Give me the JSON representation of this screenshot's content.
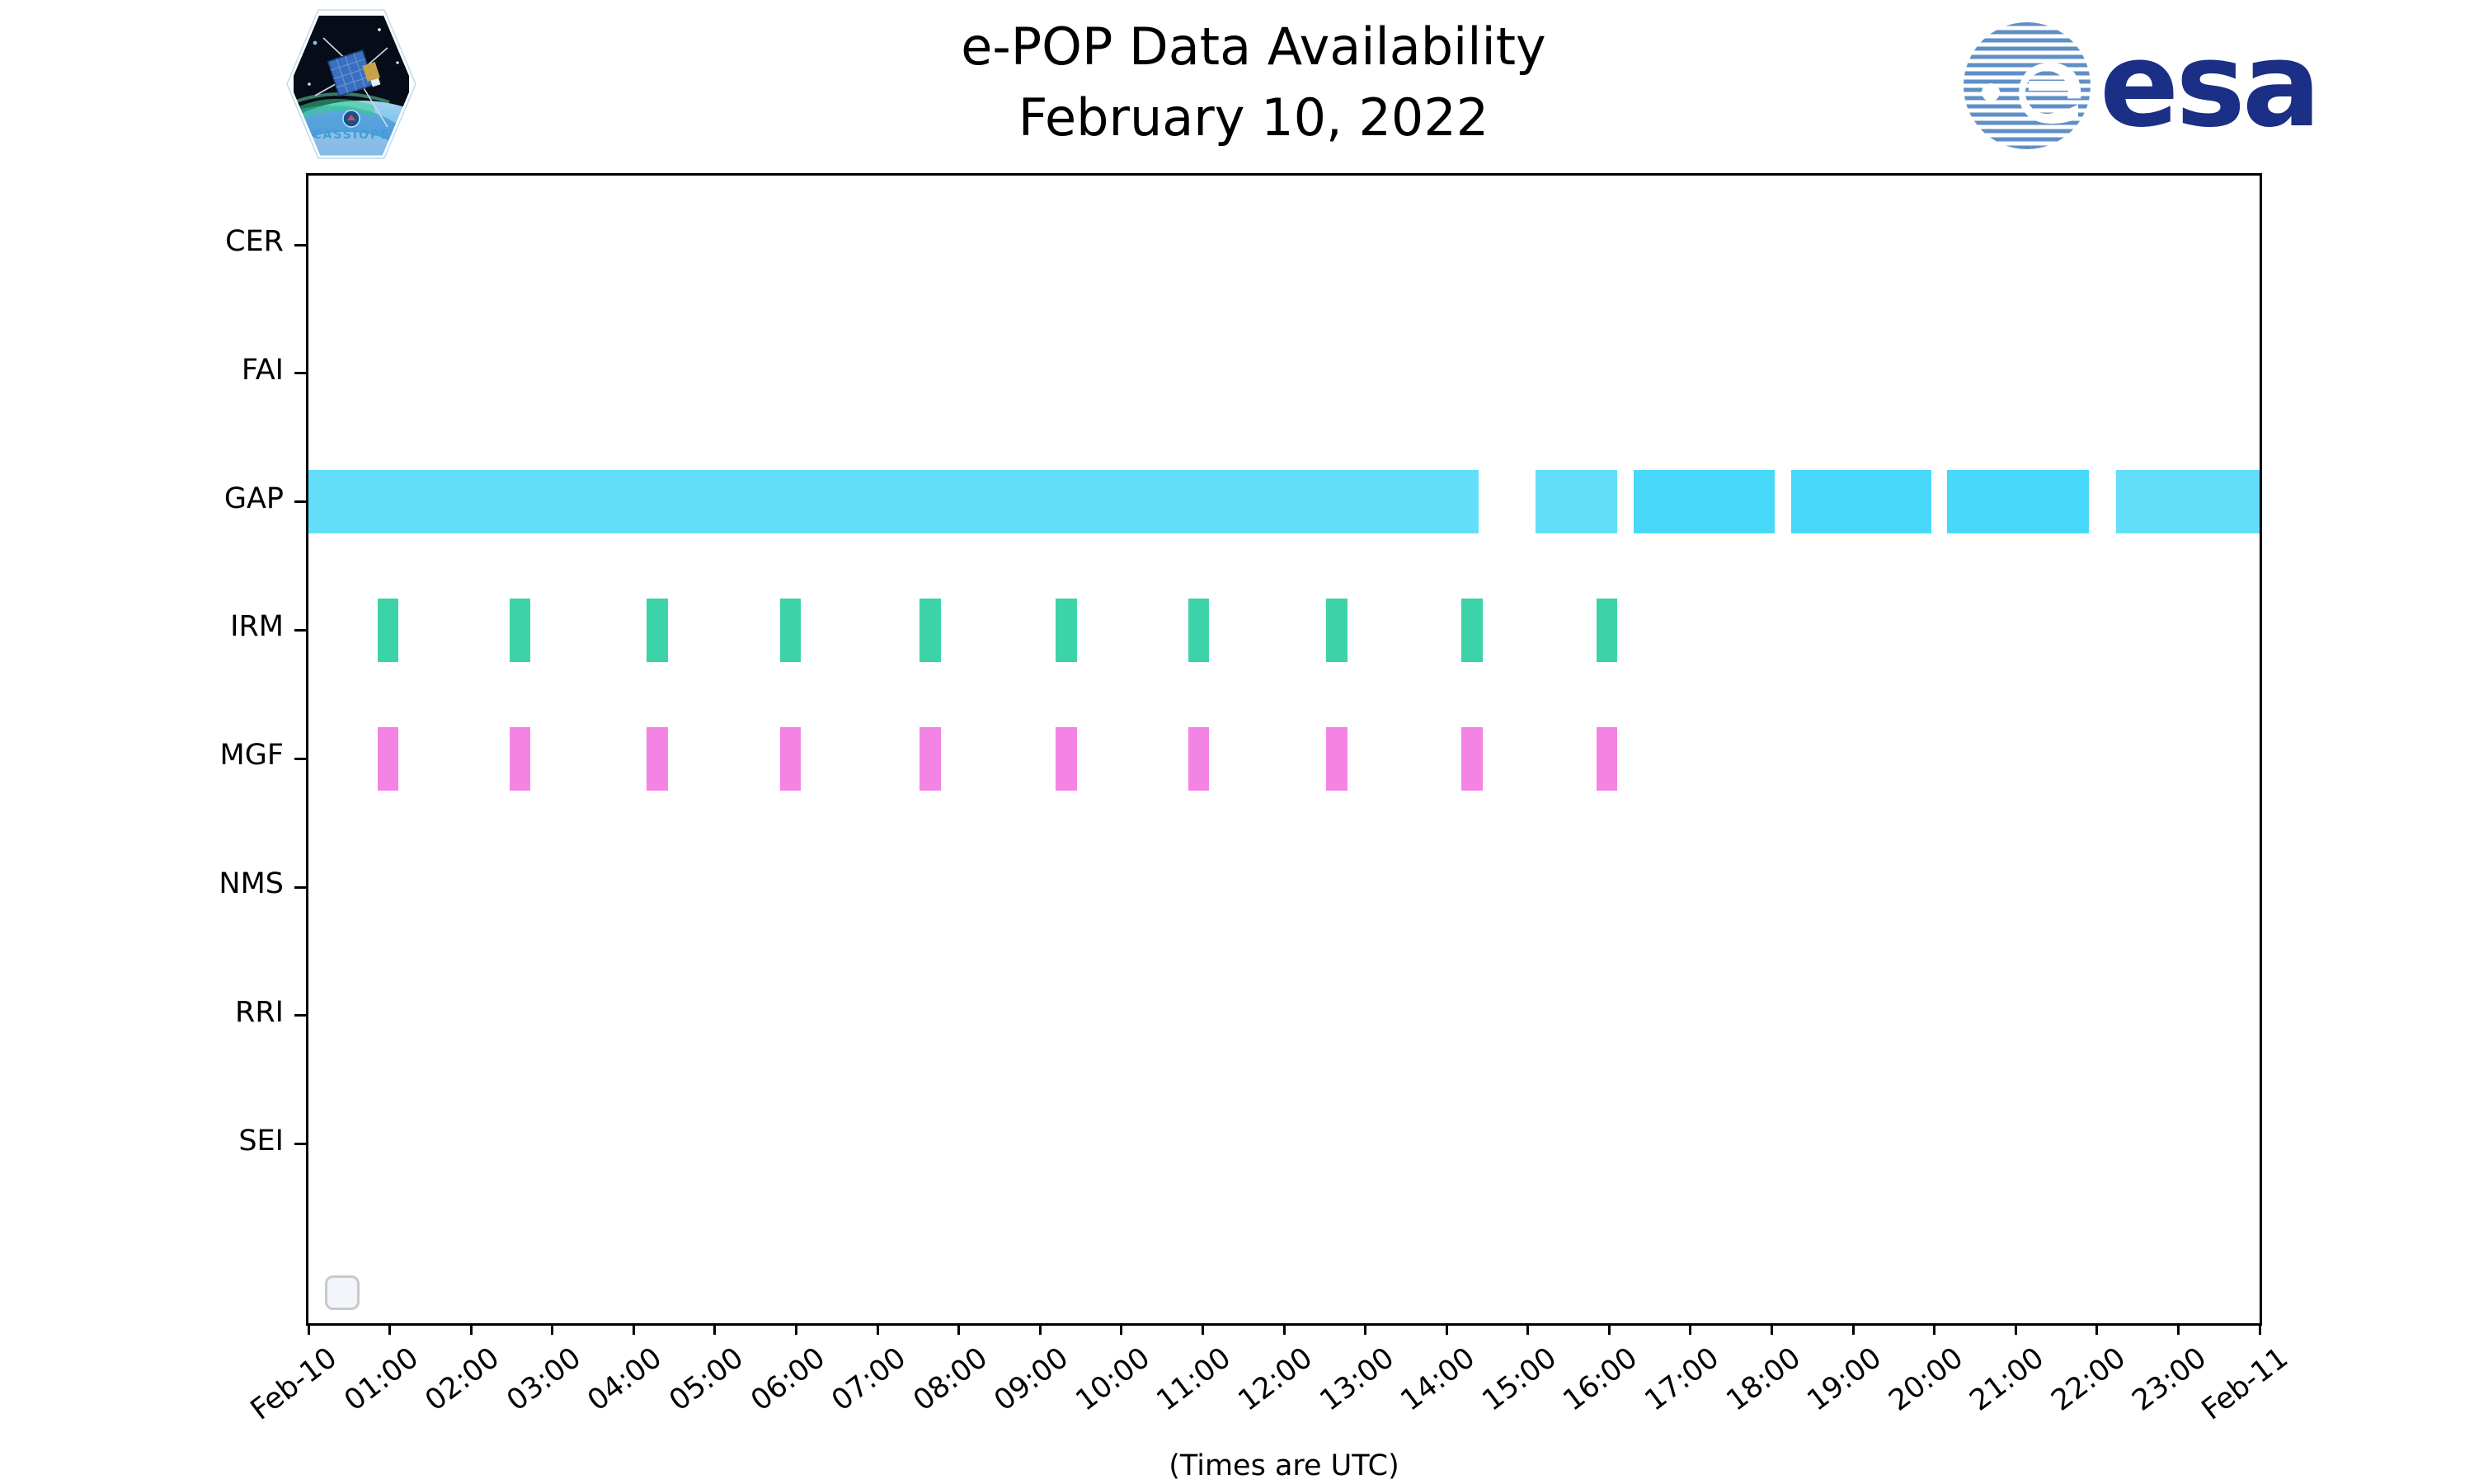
{
  "header": {
    "title_line1": "e-POP Data Availability",
    "title_line2": "February 10, 2022",
    "cassiope_badge_text": "CASSIOPE",
    "esa_logo_text": "esa"
  },
  "footer_label": "(Times are UTC)",
  "colors": {
    "gap_light": "#62def9",
    "gap_dark": "#48d8fa",
    "irm_green": "#3dd3a8",
    "mgf_pink": "#f484e4",
    "axis": "#000000",
    "esa_navy": "#1a2f85",
    "esa_stripe_blue": "#5f8fc7"
  },
  "chart_data": {
    "type": "timeline",
    "title": "e-POP Data Availability February 10, 2022",
    "xlabel": "(Times are UTC)",
    "x_range_hours": [
      0,
      24
    ],
    "x_tick_labels": [
      "Feb-10",
      "01:00",
      "02:00",
      "03:00",
      "04:00",
      "05:00",
      "06:00",
      "07:00",
      "08:00",
      "09:00",
      "10:00",
      "11:00",
      "12:00",
      "13:00",
      "14:00",
      "15:00",
      "16:00",
      "17:00",
      "18:00",
      "19:00",
      "20:00",
      "21:00",
      "22:00",
      "23:00",
      "Feb-11"
    ],
    "instruments": [
      "CER",
      "FAI",
      "GAP",
      "IRM",
      "MGF",
      "NMS",
      "RRI",
      "SEI"
    ],
    "legend": "empty-stub-box-bottom-left",
    "grid": false,
    "series": [
      {
        "name": "GAP",
        "row": "GAP",
        "colors": {
          "light": "#62def9",
          "dark": "#48d8fa"
        },
        "intervals": [
          {
            "start": 0.0,
            "end": 14.39,
            "shade": "light"
          },
          {
            "start": 15.09,
            "end": 16.1,
            "shade": "light"
          },
          {
            "start": 16.3,
            "end": 18.04,
            "shade": "dark"
          },
          {
            "start": 18.24,
            "end": 19.96,
            "shade": "dark"
          },
          {
            "start": 20.16,
            "end": 21.9,
            "shade": "dark"
          },
          {
            "start": 22.24,
            "end": 24.0,
            "shade": "light"
          }
        ]
      },
      {
        "name": "IRM",
        "row": "IRM",
        "colors": {
          "light": "#3dd3a8",
          "dark": "#3dd3a8"
        },
        "intervals": [
          {
            "start": 0.85,
            "end": 1.11,
            "shade": "light"
          },
          {
            "start": 2.47,
            "end": 2.73,
            "shade": "light"
          },
          {
            "start": 4.16,
            "end": 4.42,
            "shade": "light"
          },
          {
            "start": 5.8,
            "end": 6.06,
            "shade": "light"
          },
          {
            "start": 7.52,
            "end": 7.78,
            "shade": "light"
          },
          {
            "start": 9.19,
            "end": 9.45,
            "shade": "light"
          },
          {
            "start": 10.82,
            "end": 11.08,
            "shade": "light"
          },
          {
            "start": 12.52,
            "end": 12.78,
            "shade": "light"
          },
          {
            "start": 14.18,
            "end": 14.44,
            "shade": "light"
          },
          {
            "start": 15.84,
            "end": 16.1,
            "shade": "light"
          }
        ]
      },
      {
        "name": "MGF",
        "row": "MGF",
        "colors": {
          "light": "#f484e4",
          "dark": "#f484e4"
        },
        "intervals": [
          {
            "start": 0.85,
            "end": 1.11,
            "shade": "light"
          },
          {
            "start": 2.47,
            "end": 2.73,
            "shade": "light"
          },
          {
            "start": 4.16,
            "end": 4.42,
            "shade": "light"
          },
          {
            "start": 5.8,
            "end": 6.06,
            "shade": "light"
          },
          {
            "start": 7.52,
            "end": 7.78,
            "shade": "light"
          },
          {
            "start": 9.19,
            "end": 9.45,
            "shade": "light"
          },
          {
            "start": 10.82,
            "end": 11.08,
            "shade": "light"
          },
          {
            "start": 12.52,
            "end": 12.78,
            "shade": "light"
          },
          {
            "start": 14.18,
            "end": 14.44,
            "shade": "light"
          },
          {
            "start": 15.84,
            "end": 16.1,
            "shade": "light"
          }
        ]
      }
    ]
  }
}
